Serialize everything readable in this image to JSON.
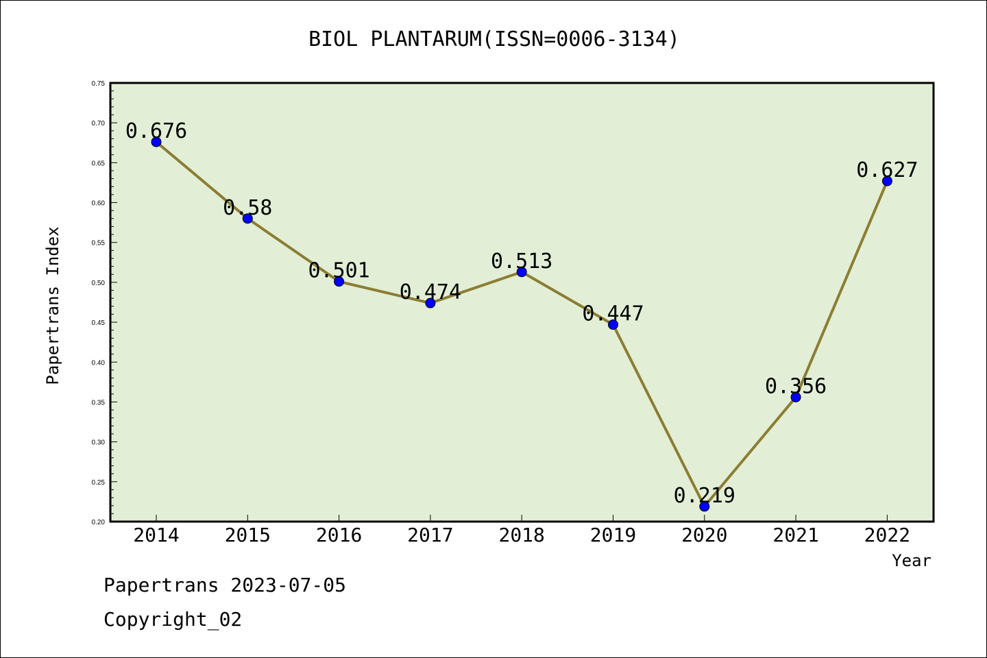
{
  "chart_data": {
    "type": "line",
    "title": "BIOL PLANTARUM(ISSN=0006-3134)",
    "xlabel": "Year",
    "ylabel": "Papertrans Index",
    "categories": [
      "2014",
      "2015",
      "2016",
      "2017",
      "2018",
      "2019",
      "2020",
      "2021",
      "2022"
    ],
    "series": [
      {
        "values": [
          0.676,
          0.58,
          0.501,
          0.474,
          0.513,
          0.447,
          0.219,
          0.356,
          0.627
        ],
        "labels": [
          "0.676",
          "0.58",
          "0.501",
          "0.474",
          "0.513",
          "0.447",
          "0.219",
          "0.356",
          "0.627"
        ]
      }
    ],
    "ylim": [
      0.2,
      0.75
    ],
    "yticks": [
      "0.20",
      "0.25",
      "0.30",
      "0.35",
      "0.40",
      "0.45",
      "0.50",
      "0.55",
      "0.60",
      "0.65",
      "0.70",
      "0.75"
    ],
    "grid": false,
    "colors": {
      "plot_background": "#e2efd6",
      "line": "#8b7d33",
      "marker": "#0000ff"
    }
  },
  "footer": {
    "line1": "Papertrans 2023-07-05",
    "line2": "Copyright_02"
  }
}
